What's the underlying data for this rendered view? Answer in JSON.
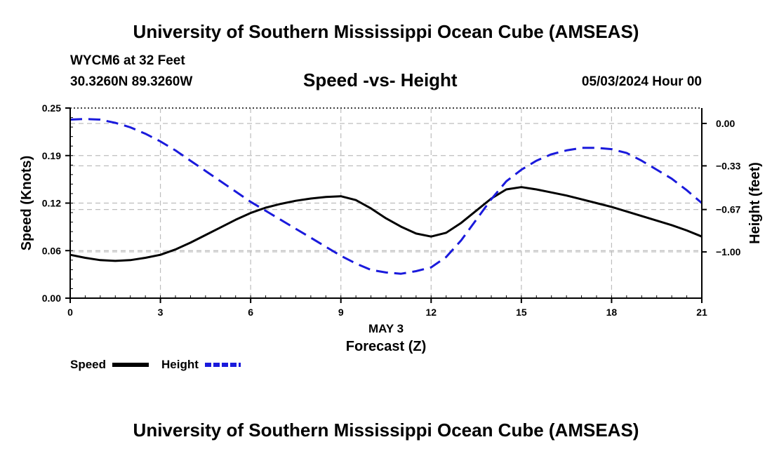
{
  "header": {
    "title": "University of Southern Mississippi Ocean Cube (AMSEAS)",
    "station": "WYCM6 at 32 Feet",
    "coords": "30.3260N  89.3260W",
    "subtitle": "Speed -vs- Height",
    "date": "05/03/2024 Hour 00"
  },
  "footer": {
    "title": "University of Southern Mississippi Ocean Cube (AMSEAS)"
  },
  "colors": {
    "speed": "#000000",
    "height": "#1a1adc",
    "grid": "#bdbdbd"
  },
  "chart_data": {
    "type": "line",
    "title": "Speed -vs- Height",
    "xlabel": "Forecast (Z)",
    "xlabel_date": "MAY 3",
    "ylabel": "Speed (Knots)",
    "y2label": "Height (feet)",
    "xlim": [
      0,
      21
    ],
    "ylim": [
      0,
      0.25
    ],
    "y2lim": [
      -1.36,
      0.12
    ],
    "x_ticks": [
      0,
      3,
      6,
      9,
      12,
      15,
      18,
      21
    ],
    "x_tick_labels": [
      "0",
      "3",
      "6",
      "9",
      "12",
      "15",
      "18",
      "21"
    ],
    "y_ticks": [
      0,
      0.0625,
      0.125,
      0.1875,
      0.25
    ],
    "y_tick_labels": [
      "0.00",
      "0.06",
      "0.12",
      "0.19",
      "0.25"
    ],
    "y2_ticks": [
      0,
      -0.33,
      -0.67,
      -1.0
    ],
    "y2_tick_labels": [
      "0.00",
      "−0.33",
      "−0.67",
      "−1.00"
    ],
    "grid": true,
    "legend": {
      "position": "bottom-left",
      "entries": [
        "Speed",
        "Height"
      ]
    },
    "series": [
      {
        "name": "Speed",
        "axis": "left",
        "style": "solid",
        "x": [
          0,
          0.5,
          1,
          1.5,
          2,
          2.5,
          3,
          3.5,
          4,
          4.5,
          5,
          5.5,
          6,
          6.5,
          7,
          7.5,
          8,
          8.5,
          9,
          9.5,
          10,
          10.5,
          11,
          11.5,
          12,
          12.5,
          13,
          13.5,
          14,
          14.5,
          15,
          15.5,
          16,
          16.5,
          17,
          17.5,
          18,
          18.5,
          19,
          19.5,
          20,
          20.5,
          21
        ],
        "values": [
          0.057,
          0.053,
          0.05,
          0.049,
          0.05,
          0.053,
          0.057,
          0.064,
          0.073,
          0.083,
          0.093,
          0.103,
          0.112,
          0.119,
          0.124,
          0.128,
          0.131,
          0.133,
          0.134,
          0.129,
          0.118,
          0.105,
          0.094,
          0.085,
          0.081,
          0.086,
          0.099,
          0.115,
          0.131,
          0.143,
          0.146,
          0.143,
          0.139,
          0.135,
          0.13,
          0.125,
          0.12,
          0.114,
          0.108,
          0.102,
          0.096,
          0.089,
          0.081
        ]
      },
      {
        "name": "Height",
        "axis": "right",
        "style": "dashed",
        "x": [
          0,
          0.5,
          1,
          1.5,
          2,
          2.5,
          3,
          3.5,
          4,
          4.5,
          5,
          5.5,
          6,
          6.5,
          7,
          7.5,
          8,
          8.5,
          9,
          9.5,
          10,
          10.5,
          11,
          11.5,
          12,
          12.5,
          13,
          13.5,
          14,
          14.5,
          15,
          15.5,
          16,
          16.5,
          17,
          17.5,
          18,
          18.5,
          19,
          19.5,
          20,
          20.5,
          21
        ],
        "values": [
          0.03,
          0.035,
          0.03,
          0.005,
          -0.03,
          -0.08,
          -0.14,
          -0.21,
          -0.29,
          -0.37,
          -0.45,
          -0.53,
          -0.61,
          -0.68,
          -0.75,
          -0.82,
          -0.89,
          -0.96,
          -1.03,
          -1.09,
          -1.14,
          -1.16,
          -1.17,
          -1.15,
          -1.12,
          -1.04,
          -0.91,
          -0.75,
          -0.59,
          -0.45,
          -0.36,
          -0.29,
          -0.24,
          -0.21,
          -0.19,
          -0.19,
          -0.2,
          -0.23,
          -0.29,
          -0.36,
          -0.43,
          -0.52,
          -0.62
        ]
      }
    ]
  }
}
